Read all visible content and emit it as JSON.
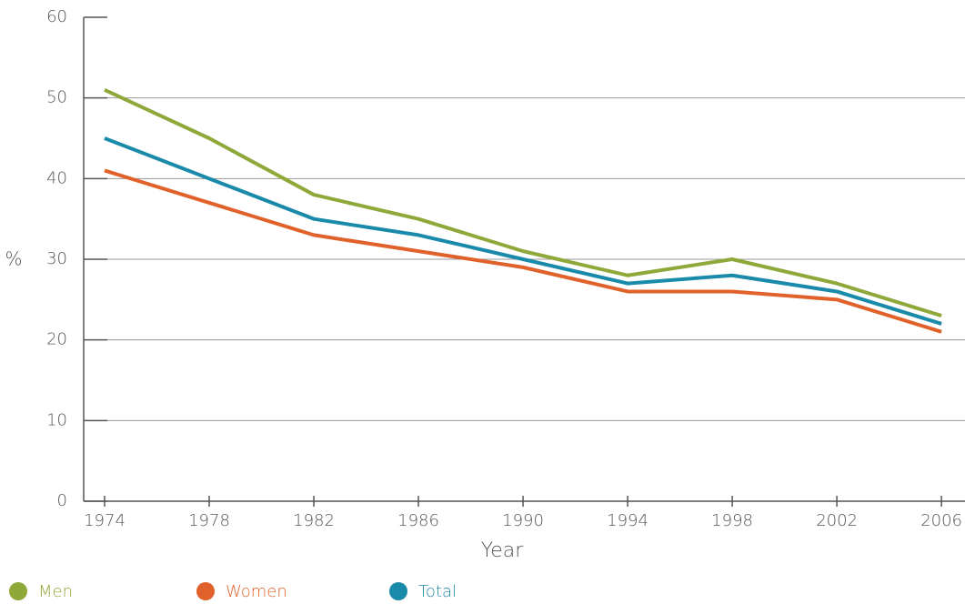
{
  "chart_data": {
    "type": "line",
    "x": [
      1974,
      1978,
      1982,
      1986,
      1990,
      1994,
      1998,
      2002,
      2006
    ],
    "series": [
      {
        "name": "Men",
        "color": "#8fa83a",
        "values": [
          51,
          45,
          38,
          35,
          31,
          28,
          30,
          27,
          23
        ]
      },
      {
        "name": "Women",
        "color": "#e0622a",
        "values": [
          41,
          37,
          33,
          31,
          29,
          26,
          26,
          25,
          21
        ]
      },
      {
        "name": "Total",
        "color": "#1a8aaa",
        "values": [
          45,
          40,
          35,
          33,
          30,
          27,
          28,
          26,
          22
        ]
      }
    ],
    "xlabel": "Year",
    "ylabel": "%",
    "xlim": [
      1973.2,
      2006.9
    ],
    "xticks": [
      1974,
      1978,
      1982,
      1986,
      1990,
      1994,
      1998,
      2002,
      2006
    ],
    "ylim": [
      0,
      60
    ],
    "yticks": [
      0,
      10,
      20,
      30,
      40,
      50,
      60
    ],
    "grid": true,
    "legend": "bottom-left"
  }
}
